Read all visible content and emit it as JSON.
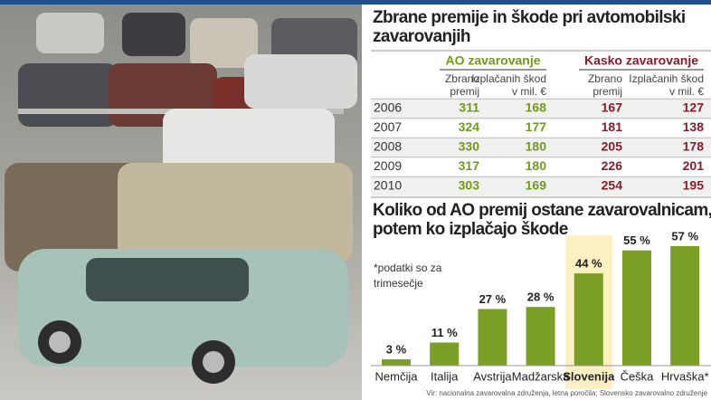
{
  "table": {
    "title": [
      "Zbrane premije in škode pri avtomobilski",
      "zavarovanjih"
    ],
    "groups": [
      {
        "name": "AO zavarovanje",
        "color": "#6f9a1c"
      },
      {
        "name": "Kasko zavarovanje",
        "color": "#8a1c2c"
      }
    ],
    "subheaders": [
      [
        "Zbrano",
        "premij"
      ],
      [
        "Izplačanih škod",
        "v mil. €"
      ],
      [
        "Zbrano",
        "premij"
      ],
      [
        "Izplačanih škod",
        "v mil. €"
      ]
    ],
    "rows": [
      [
        "2006",
        "311",
        "168",
        "167",
        "127"
      ],
      [
        "2007",
        "324",
        "177",
        "181",
        "138"
      ],
      [
        "2008",
        "330",
        "180",
        "205",
        "178"
      ],
      [
        "2009",
        "317",
        "180",
        "226",
        "201"
      ],
      [
        "2010",
        "303",
        "169",
        "254",
        "195"
      ]
    ]
  },
  "chart_data": {
    "type": "bar",
    "title": [
      "Koliko od AO premij ostane zavarovalnicam,",
      "potem ko izplačajo škode"
    ],
    "note": [
      "*podatki so za",
      "trimesečje"
    ],
    "categories": [
      "Nemčija",
      "Italija",
      "Avstrija",
      "Madžarska",
      "Slovenija",
      "Češka",
      "Hrvaška*"
    ],
    "values": [
      3,
      11,
      27,
      28,
      44,
      55,
      57
    ],
    "value_labels": [
      "3 %",
      "11 %",
      "27 %",
      "28 %",
      "44 %",
      "55 %",
      "57 %"
    ],
    "color": "#7a9f24",
    "highlight": 4,
    "highlight_color": "#fbf0c2"
  },
  "source": "Vir: nacionalna zavarovalna združenja, letna poročila; Slovensko zavarovalno združenje"
}
